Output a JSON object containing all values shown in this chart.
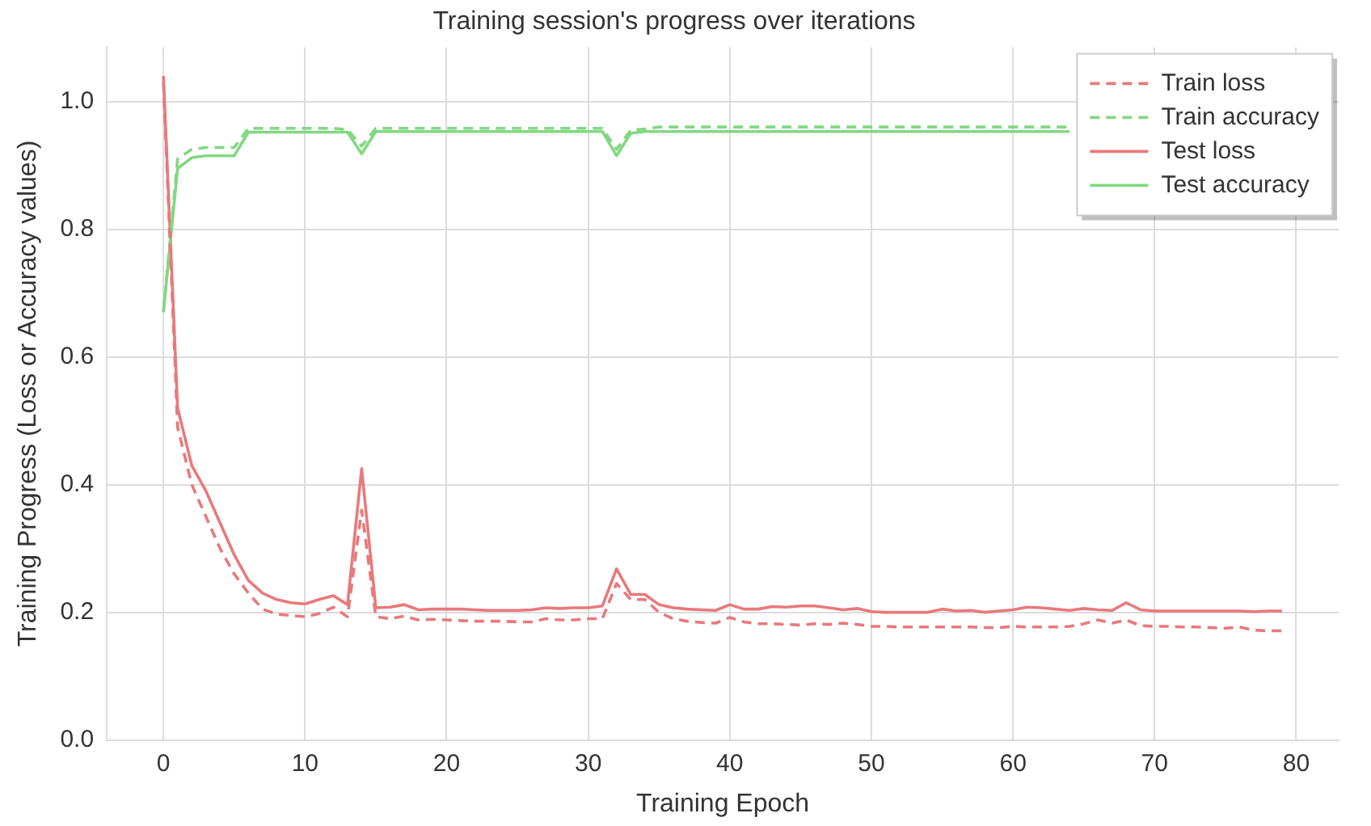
{
  "chart_data": {
    "type": "line",
    "title": "Training session's progress over iterations",
    "xlabel": "Training Epoch",
    "ylabel": "Training Progress (Loss or Accuracy values)",
    "x": [
      0,
      1,
      2,
      3,
      4,
      5,
      6,
      7,
      8,
      9,
      10,
      11,
      12,
      13,
      14,
      15,
      16,
      17,
      18,
      19,
      20,
      21,
      22,
      23,
      24,
      25,
      26,
      27,
      28,
      29,
      30,
      31,
      32,
      33,
      34,
      35,
      36,
      37,
      38,
      39,
      40,
      41,
      42,
      43,
      44,
      45,
      46,
      47,
      48,
      49,
      50,
      51,
      52,
      53,
      54,
      55,
      56,
      57,
      58,
      59,
      60,
      61,
      62,
      63,
      64,
      65,
      66,
      67,
      68,
      69,
      70,
      71,
      72,
      73,
      74,
      75,
      76,
      77,
      78,
      79
    ],
    "xlim": [
      -4,
      83
    ],
    "xticks": [
      0,
      10,
      20,
      30,
      40,
      50,
      60,
      70,
      80
    ],
    "ylim": [
      0,
      1.085
    ],
    "yticks": [
      {
        "value": 0,
        "label": "0.0"
      },
      0.2,
      0.4,
      0.6,
      0.8,
      {
        "value": 1,
        "label": "1.0"
      }
    ],
    "grid": true,
    "legend": "top right",
    "marker": "none",
    "series": [
      {
        "name": "Train loss",
        "color": "#e8797b",
        "line_style": "dashed",
        "values": [
          1.03,
          0.49,
          0.4,
          0.35,
          0.3,
          0.26,
          0.23,
          0.205,
          0.197,
          0.195,
          0.193,
          0.198,
          0.208,
          0.193,
          0.36,
          0.193,
          0.19,
          0.194,
          0.188,
          0.189,
          0.188,
          0.187,
          0.186,
          0.186,
          0.186,
          0.185,
          0.185,
          0.19,
          0.188,
          0.188,
          0.19,
          0.19,
          0.245,
          0.22,
          0.22,
          0.2,
          0.19,
          0.186,
          0.184,
          0.183,
          0.192,
          0.185,
          0.182,
          0.182,
          0.181,
          0.18,
          0.182,
          0.181,
          0.183,
          0.181,
          0.178,
          0.178,
          0.177,
          0.177,
          0.177,
          0.177,
          0.177,
          0.177,
          0.176,
          0.176,
          0.178,
          0.177,
          0.177,
          0.177,
          0.178,
          0.182,
          0.188,
          0.183,
          0.188,
          0.179,
          0.178,
          0.178,
          0.177,
          0.177,
          0.176,
          0.175,
          0.177,
          0.172,
          0.171,
          0.171
        ]
      },
      {
        "name": "Train accuracy",
        "color": "#82d882",
        "line_style": "dashed",
        "values": [
          0.67,
          0.91,
          0.925,
          0.928,
          0.928,
          0.928,
          0.958,
          0.958,
          0.958,
          0.958,
          0.958,
          0.958,
          0.958,
          0.956,
          0.93,
          0.958,
          0.958,
          0.958,
          0.958,
          0.958,
          0.958,
          0.958,
          0.958,
          0.958,
          0.958,
          0.958,
          0.958,
          0.958,
          0.958,
          0.958,
          0.958,
          0.958,
          0.925,
          0.955,
          0.957,
          0.96,
          0.96,
          0.96,
          0.96,
          0.96,
          0.96,
          0.96,
          0.96,
          0.96,
          0.96,
          0.96,
          0.96,
          0.96,
          0.96,
          0.96,
          0.96,
          0.96,
          0.96,
          0.96,
          0.96,
          0.96,
          0.96,
          0.96,
          0.96,
          0.96,
          0.96,
          0.96,
          0.96,
          0.96,
          0.96,
          null,
          null,
          null,
          null,
          null,
          null,
          null,
          null,
          null,
          null,
          null,
          null,
          null,
          null,
          null
        ]
      },
      {
        "name": "Test loss",
        "color": "#e8797b",
        "line_style": "solid",
        "values": [
          1.04,
          0.52,
          0.43,
          0.39,
          0.34,
          0.29,
          0.25,
          0.23,
          0.22,
          0.215,
          0.213,
          0.22,
          0.226,
          0.212,
          0.425,
          0.207,
          0.208,
          0.212,
          0.204,
          0.205,
          0.205,
          0.205,
          0.204,
          0.203,
          0.203,
          0.203,
          0.204,
          0.207,
          0.206,
          0.207,
          0.207,
          0.21,
          0.268,
          0.228,
          0.228,
          0.212,
          0.207,
          0.205,
          0.204,
          0.203,
          0.212,
          0.205,
          0.205,
          0.209,
          0.208,
          0.21,
          0.21,
          0.207,
          0.204,
          0.206,
          0.201,
          0.2,
          0.2,
          0.2,
          0.2,
          0.205,
          0.202,
          0.203,
          0.2,
          0.202,
          0.204,
          0.208,
          0.207,
          0.205,
          0.203,
          0.206,
          0.204,
          0.203,
          0.215,
          0.204,
          0.202,
          0.202,
          0.202,
          0.202,
          0.202,
          0.202,
          0.202,
          0.201,
          0.202,
          0.202
        ]
      },
      {
        "name": "Test accuracy",
        "color": "#82d882",
        "line_style": "solid",
        "values": [
          0.67,
          0.895,
          0.912,
          0.915,
          0.915,
          0.915,
          0.952,
          0.952,
          0.952,
          0.952,
          0.952,
          0.952,
          0.952,
          0.952,
          0.918,
          0.953,
          0.953,
          0.953,
          0.953,
          0.953,
          0.953,
          0.953,
          0.953,
          0.953,
          0.953,
          0.953,
          0.953,
          0.953,
          0.953,
          0.953,
          0.953,
          0.953,
          0.915,
          0.95,
          0.953,
          0.953,
          0.953,
          0.953,
          0.953,
          0.953,
          0.953,
          0.953,
          0.953,
          0.953,
          0.953,
          0.953,
          0.953,
          0.953,
          0.953,
          0.953,
          0.953,
          0.953,
          0.953,
          0.953,
          0.953,
          0.953,
          0.953,
          0.953,
          0.953,
          0.953,
          0.953,
          0.953,
          0.953,
          0.953,
          0.953,
          null,
          null,
          null,
          null,
          null,
          null,
          null,
          null,
          null,
          null,
          null,
          null,
          null,
          null,
          null
        ]
      }
    ]
  }
}
